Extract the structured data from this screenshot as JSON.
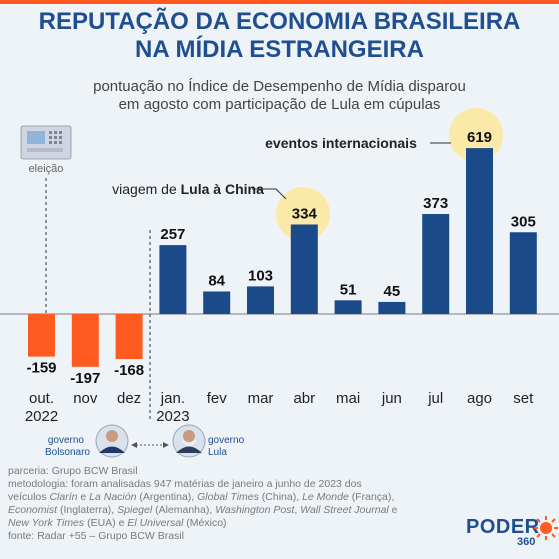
{
  "title_line1": "REPUTAÇÃO DA ECONOMIA BRASILEIRA",
  "title_line2": "NA MÍDIA ESTRANGEIRA",
  "subtitle_line1": "pontuação no Índice de Desempenho de Mídia disparou",
  "subtitle_line2": "em agosto com participação de Lula em cúpulas",
  "annotations": {
    "election": "eleição",
    "china_prefix": "viagem de ",
    "china_bold": "Lula à China",
    "international": "eventos internacionais",
    "gov_bolsonaro": [
      "governo",
      "Bolsonaro"
    ],
    "gov_lula": [
      "governo",
      "Lula"
    ]
  },
  "colors": {
    "title": "#1f4e91",
    "positive": "#1b4a8a",
    "negative": "#ff5a1f",
    "highlight": "#fbe9a9",
    "accent": "#ff5a1f"
  },
  "chart_data": {
    "type": "bar",
    "title": "REPUTAÇÃO DA ECONOMIA BRASILEIRA NA MÍDIA ESTRANGEIRA",
    "categories": [
      "out. 2022",
      "nov",
      "dez",
      "jan. 2023",
      "fev",
      "mar",
      "abr",
      "mai",
      "jun",
      "jul",
      "ago",
      "set"
    ],
    "category_labels": [
      [
        "out.",
        "2022"
      ],
      [
        "nov"
      ],
      [
        "dez"
      ],
      [
        "jan.",
        "2023"
      ],
      [
        "fev"
      ],
      [
        "mar"
      ],
      [
        "abr"
      ],
      [
        "mai"
      ],
      [
        "jun"
      ],
      [
        "jul"
      ],
      [
        "ago"
      ],
      [
        "set"
      ]
    ],
    "values": [
      -159,
      -197,
      -168,
      257,
      84,
      103,
      334,
      51,
      45,
      373,
      619,
      305
    ],
    "value_labels": [
      "-159",
      "-197",
      "-168",
      "257",
      "84",
      "103",
      "334",
      "51",
      "45",
      "373",
      "619",
      "305"
    ],
    "highlighted": [
      "abr",
      "ago"
    ],
    "xlabel": "",
    "ylabel": "",
    "grid": false
  },
  "footer": {
    "line1": "parceria: Grupo BCW Brasil",
    "line2": "metodologia: foram analisadas 947 matérias de janeiro a junho de 2023 dos",
    "line3": [
      {
        "t": "veículos ",
        "i": false
      },
      {
        "t": "Clarín",
        "i": true
      },
      {
        "t": " e ",
        "i": false
      },
      {
        "t": "La Nación",
        "i": true
      },
      {
        "t": " (Argentina), ",
        "i": false
      },
      {
        "t": "Global Times",
        "i": true
      },
      {
        "t": " (China), ",
        "i": false
      },
      {
        "t": "Le Monde",
        "i": true
      },
      {
        "t": " (França),",
        "i": false
      }
    ],
    "line4": [
      {
        "t": "Economist",
        "i": true
      },
      {
        "t": " (Inglaterra), ",
        "i": false
      },
      {
        "t": "Spiegel",
        "i": true
      },
      {
        "t": " (Alemanha), ",
        "i": false
      },
      {
        "t": "Washington Post",
        "i": true
      },
      {
        "t": ", ",
        "i": false
      },
      {
        "t": "Wall Street Journal",
        "i": true
      },
      {
        "t": " e",
        "i": false
      }
    ],
    "line5": [
      {
        "t": "New York Times",
        "i": true
      },
      {
        "t": " (EUA) e ",
        "i": false
      },
      {
        "t": "El Universal",
        "i": true
      },
      {
        "t": " (México)",
        "i": false
      }
    ],
    "line6": "fonte: Radar +55 – Grupo BCW Brasil"
  },
  "logo": {
    "name": "PODER",
    "sub": "360"
  }
}
